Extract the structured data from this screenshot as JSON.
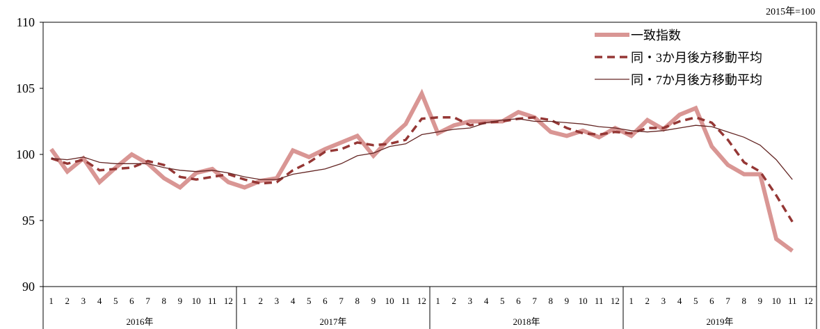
{
  "unit_label": "2015年=100",
  "chart_data": {
    "type": "line",
    "ylim": [
      90,
      110
    ],
    "yticks": [
      90,
      95,
      100,
      105,
      110
    ],
    "years": [
      "2016年",
      "2017年",
      "2018年",
      "2019年"
    ],
    "months": [
      "1",
      "2",
      "3",
      "4",
      "5",
      "6",
      "7",
      "8",
      "9",
      "10",
      "11",
      "12"
    ],
    "grid": false,
    "legend": "top-right",
    "series": [
      {
        "name": "一致指数",
        "color": "#d99694",
        "values": [
          100.4,
          98.7,
          99.7,
          97.9,
          99.0,
          100.0,
          99.3,
          98.2,
          97.5,
          98.6,
          98.9,
          97.9,
          97.5,
          98.0,
          98.2,
          100.3,
          99.8,
          100.4,
          100.9,
          101.4,
          99.9,
          101.2,
          102.3,
          104.6,
          101.6,
          102.2,
          102.5,
          102.5,
          102.5,
          103.2,
          102.8,
          101.7,
          101.4,
          101.8,
          101.3,
          102.0,
          101.4,
          102.6,
          101.9,
          103.0,
          103.5,
          100.6,
          99.2,
          98.5,
          98.5,
          93.6,
          92.7,
          null
        ]
      },
      {
        "name": "同・3か月後方移動平均",
        "color": "#953735",
        "dashed": true,
        "values": [
          99.7,
          99.3,
          99.6,
          98.8,
          98.9,
          99.0,
          99.5,
          99.2,
          98.3,
          98.1,
          98.3,
          98.5,
          98.1,
          97.8,
          97.9,
          98.8,
          99.4,
          100.2,
          100.4,
          100.9,
          100.7,
          100.8,
          101.1,
          102.7,
          102.8,
          102.8,
          102.2,
          102.4,
          102.5,
          102.7,
          102.8,
          102.6,
          102.0,
          101.6,
          101.5,
          101.7,
          101.6,
          102.0,
          102.0,
          102.5,
          102.8,
          102.4,
          101.1,
          99.4,
          98.7,
          96.9,
          94.9,
          null
        ]
      },
      {
        "name": "同・7か月後方移動平均",
        "color": "#632523",
        "values": [
          99.7,
          99.6,
          99.8,
          99.4,
          99.3,
          99.3,
          99.3,
          99.0,
          98.8,
          98.7,
          98.8,
          98.6,
          98.3,
          98.1,
          98.1,
          98.5,
          98.7,
          98.9,
          99.3,
          99.9,
          100.1,
          100.6,
          100.8,
          101.5,
          101.7,
          101.9,
          102.0,
          102.4,
          102.6,
          102.7,
          102.5,
          102.5,
          102.4,
          102.3,
          102.1,
          102.0,
          101.8,
          101.7,
          101.8,
          102.0,
          102.2,
          102.1,
          101.7,
          101.3,
          100.7,
          99.6,
          98.1,
          null
        ]
      }
    ]
  }
}
